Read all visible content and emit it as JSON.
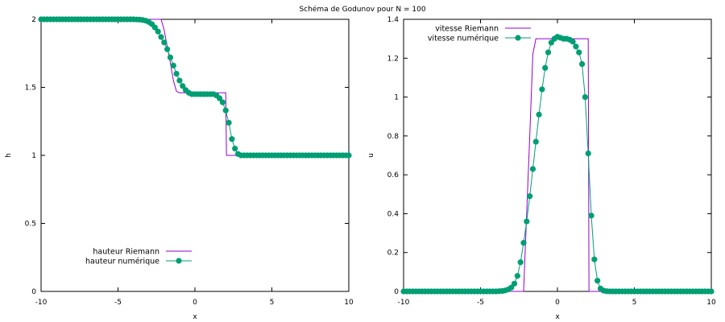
{
  "figure": {
    "title": "Schéma de Godunov pour N = 100"
  },
  "colors": {
    "riemann": "#9400d3",
    "numeric": "#009e73"
  },
  "chart_data": [
    {
      "type": "line",
      "xlabel": "x",
      "ylabel": "h",
      "xlim": [
        -10,
        10
      ],
      "ylim": [
        0,
        2
      ],
      "xticks": [
        -10,
        -5,
        0,
        5,
        10
      ],
      "yticks": [
        0,
        0.5,
        1,
        1.5,
        2
      ],
      "ytick_labels": [
        "0",
        "0.5",
        "1",
        "1.5",
        "2"
      ],
      "legend_position": "bottom-left",
      "series": [
        {
          "name": "hauteur Riemann",
          "style": "line",
          "color": "#9400d3",
          "x": [
            -10,
            -2.2,
            -2.0,
            -1.8,
            -1.6,
            -1.4,
            -1.2,
            -1.0,
            1.3,
            1.9,
            2.0,
            2.05,
            10
          ],
          "y": [
            2.0,
            2.0,
            1.92,
            1.8,
            1.68,
            1.55,
            1.47,
            1.46,
            1.46,
            1.46,
            1.46,
            1.0,
            1.0
          ]
        },
        {
          "name": "hauteur numérique",
          "style": "linespoints",
          "color": "#009e73",
          "x": [
            -10,
            -9.8,
            -9.6,
            -9.4,
            -9.2,
            -9,
            -8.8,
            -8.6,
            -8.4,
            -8.2,
            -8,
            -7.8,
            -7.6,
            -7.4,
            -7.2,
            -7,
            -6.8,
            -6.6,
            -6.4,
            -6.2,
            -6,
            -5.8,
            -5.6,
            -5.4,
            -5.2,
            -5,
            -4.8,
            -4.6,
            -4.4,
            -4.2,
            -4,
            -3.8,
            -3.6,
            -3.4,
            -3.2,
            -3,
            -2.8,
            -2.6,
            -2.4,
            -2.2,
            -2,
            -1.8,
            -1.6,
            -1.4,
            -1.2,
            -1,
            -0.8,
            -0.6,
            -0.4,
            -0.2,
            0,
            0.2,
            0.4,
            0.6,
            0.8,
            1,
            1.2,
            1.4,
            1.6,
            1.8,
            2,
            2.2,
            2.4,
            2.6,
            2.8,
            3,
            3.2,
            3.4,
            3.6,
            3.8,
            4,
            4.2,
            4.4,
            4.6,
            4.8,
            5,
            5.2,
            5.4,
            5.6,
            5.8,
            6,
            6.2,
            6.4,
            6.6,
            6.8,
            7,
            7.2,
            7.4,
            7.6,
            7.8,
            8,
            8.2,
            8.4,
            8.6,
            8.8,
            9,
            9.2,
            9.4,
            9.6,
            9.8,
            10
          ],
          "y": [
            2,
            2,
            2,
            2,
            2,
            2,
            2,
            2,
            2,
            2,
            2,
            2,
            2,
            2,
            2,
            2,
            2,
            2,
            2,
            2,
            2,
            2,
            2,
            2,
            2,
            2,
            2,
            2,
            2,
            2,
            2,
            1.999,
            1.998,
            1.995,
            1.99,
            1.98,
            1.965,
            1.94,
            1.91,
            1.87,
            1.83,
            1.78,
            1.72,
            1.66,
            1.6,
            1.55,
            1.51,
            1.48,
            1.46,
            1.45,
            1.45,
            1.45,
            1.45,
            1.45,
            1.45,
            1.45,
            1.45,
            1.44,
            1.42,
            1.39,
            1.33,
            1.24,
            1.12,
            1.05,
            1.01,
            1.0,
            1.0,
            1.0,
            1.0,
            1.0,
            1.0,
            1.0,
            1.0,
            1.0,
            1.0,
            1.0,
            1.0,
            1.0,
            1.0,
            1.0,
            1.0,
            1.0,
            1.0,
            1.0,
            1.0,
            1.0,
            1.0,
            1.0,
            1.0,
            1.0,
            1.0,
            1.0,
            1.0,
            1.0,
            1.0,
            1.0,
            1.0,
            1.0,
            1.0,
            1.0,
            1.0
          ]
        }
      ]
    },
    {
      "type": "line",
      "xlabel": "x",
      "ylabel": "u",
      "xlim": [
        -10,
        10
      ],
      "ylim": [
        0,
        1.4
      ],
      "xticks": [
        -10,
        -5,
        0,
        5,
        10
      ],
      "yticks": [
        0,
        0.2,
        0.4,
        0.6,
        0.8,
        1,
        1.2,
        1.4
      ],
      "ytick_labels": [
        "0",
        "0.2",
        "0.4",
        "0.6",
        "0.8",
        "1",
        "1.2",
        "1.4"
      ],
      "legend_position": "top-left",
      "series": [
        {
          "name": "vitesse Riemann",
          "style": "line",
          "color": "#9400d3",
          "x": [
            -10,
            -2.2,
            -2.0,
            -1.8,
            -1.6,
            -1.4,
            -1.2,
            -1.0,
            1.8,
            1.9,
            2.0,
            2.05,
            10
          ],
          "y": [
            0,
            0,
            0.4,
            0.8,
            1.22,
            1.3,
            1.3,
            1.3,
            1.3,
            1.3,
            1.3,
            0,
            0
          ]
        },
        {
          "name": "vitesse numérique",
          "style": "linespoints",
          "color": "#009e73",
          "x": [
            -10,
            -9.8,
            -9.6,
            -9.4,
            -9.2,
            -9,
            -8.8,
            -8.6,
            -8.4,
            -8.2,
            -8,
            -7.8,
            -7.6,
            -7.4,
            -7.2,
            -7,
            -6.8,
            -6.6,
            -6.4,
            -6.2,
            -6,
            -5.8,
            -5.6,
            -5.4,
            -5.2,
            -5,
            -4.8,
            -4.6,
            -4.4,
            -4.2,
            -4,
            -3.8,
            -3.6,
            -3.4,
            -3.2,
            -3,
            -2.8,
            -2.6,
            -2.4,
            -2.2,
            -2,
            -1.8,
            -1.6,
            -1.4,
            -1.2,
            -1,
            -0.8,
            -0.6,
            -0.4,
            -0.2,
            0,
            0.2,
            0.4,
            0.6,
            0.8,
            1,
            1.2,
            1.4,
            1.6,
            1.8,
            2,
            2.2,
            2.4,
            2.6,
            2.8,
            3,
            3.2,
            3.4,
            3.6,
            3.8,
            4,
            4.2,
            4.4,
            4.6,
            4.8,
            5,
            5.2,
            5.4,
            5.6,
            5.8,
            6,
            6.2,
            6.4,
            6.6,
            6.8,
            7,
            7.2,
            7.4,
            7.6,
            7.8,
            8,
            8.2,
            8.4,
            8.6,
            8.8,
            9,
            9.2,
            9.4,
            9.6,
            9.8,
            10
          ],
          "y": [
            0,
            0,
            0,
            0,
            0,
            0,
            0,
            0,
            0,
            0,
            0,
            0,
            0,
            0,
            0,
            0,
            0,
            0,
            0,
            0,
            0,
            0,
            0,
            0,
            0,
            0,
            0,
            0,
            0,
            0,
            0,
            0.001,
            0.002,
            0.005,
            0.01,
            0.02,
            0.04,
            0.08,
            0.15,
            0.25,
            0.36,
            0.49,
            0.63,
            0.77,
            0.91,
            1.04,
            1.15,
            1.23,
            1.28,
            1.3,
            1.31,
            1.305,
            1.3,
            1.3,
            1.295,
            1.285,
            1.26,
            1.23,
            1.17,
            1.0,
            0.71,
            0.39,
            0.165,
            0.055,
            0.015,
            0.004,
            0.001,
            0,
            0,
            0,
            0,
            0,
            0,
            0,
            0,
            0,
            0,
            0,
            0,
            0,
            0,
            0,
            0,
            0,
            0,
            0,
            0,
            0,
            0,
            0,
            0,
            0,
            0,
            0,
            0,
            0,
            0,
            0,
            0,
            0,
            0
          ]
        }
      ]
    }
  ]
}
